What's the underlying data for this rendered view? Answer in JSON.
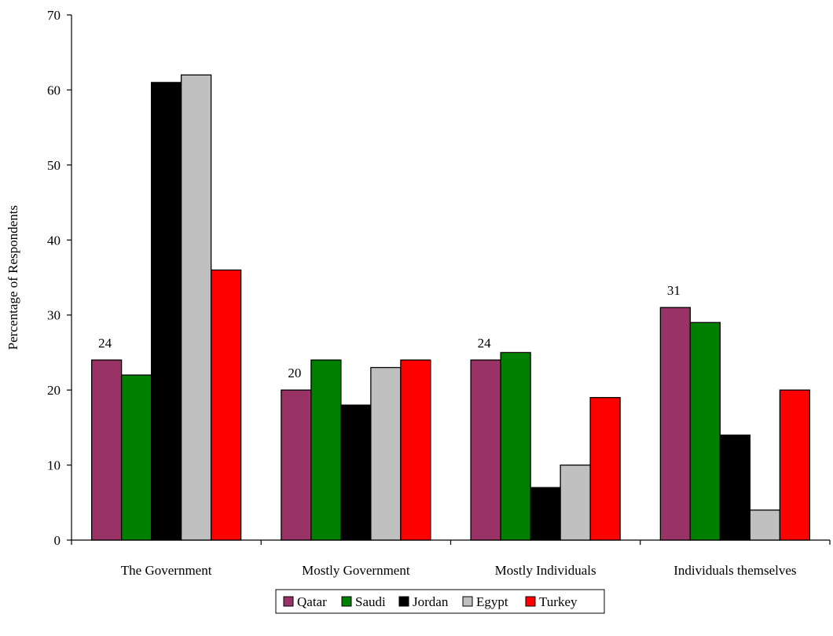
{
  "chart_data": {
    "type": "bar",
    "title": "",
    "xlabel": "",
    "ylabel": "Percentage of Respondents",
    "ylim": [
      0,
      70
    ],
    "yticks": [
      0,
      10,
      20,
      30,
      40,
      50,
      60,
      70
    ],
    "grid": false,
    "legend_position": "bottom",
    "categories": [
      "The Government",
      "Mostly Government",
      "Mostly Individuals",
      "Individuals themselves"
    ],
    "series": [
      {
        "name": "Qatar",
        "color": "#993366",
        "values": [
          24,
          20,
          24,
          31
        ]
      },
      {
        "name": "Saudi",
        "color": "#008000",
        "values": [
          22,
          24,
          25,
          29
        ]
      },
      {
        "name": "Jordan",
        "color": "#000000",
        "values": [
          61,
          18,
          7,
          14
        ]
      },
      {
        "name": "Egypt",
        "color": "#C0C0C0",
        "values": [
          62,
          23,
          10,
          4
        ]
      },
      {
        "name": "Turkey",
        "color": "#FF0000",
        "values": [
          36,
          24,
          19,
          20
        ]
      }
    ],
    "data_labels": [
      {
        "series": "Qatar",
        "category": "The Government",
        "text": "24"
      },
      {
        "series": "Qatar",
        "category": "Mostly Government",
        "text": "20"
      },
      {
        "series": "Qatar",
        "category": "Mostly Individuals",
        "text": "24"
      },
      {
        "series": "Qatar",
        "category": "Individuals themselves",
        "text": "31"
      }
    ]
  }
}
